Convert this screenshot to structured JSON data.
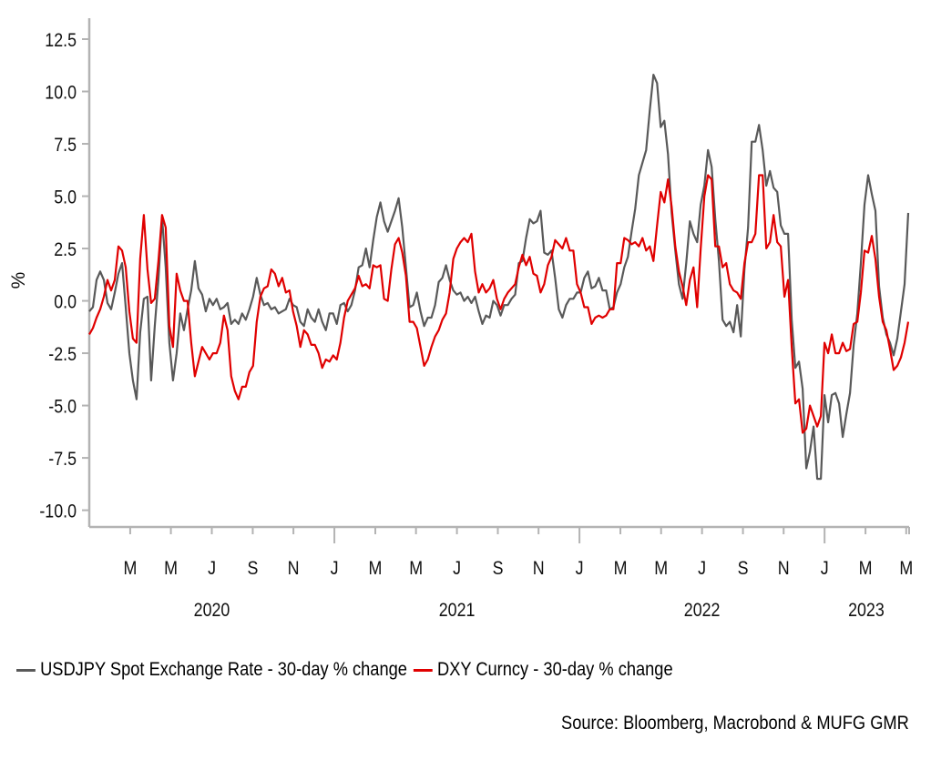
{
  "chart_data": {
    "type": "line",
    "title": "",
    "xlabel": "",
    "ylabel": "%",
    "ylim": [
      -10.8,
      13.5
    ],
    "yticks": [
      12.5,
      10.0,
      7.5,
      5.0,
      2.5,
      0.0,
      -2.5,
      -5.0,
      -7.5,
      -10.0
    ],
    "ytick_labels": [
      "12.5",
      "10.0",
      "7.5",
      "5.0",
      "2.5",
      "0.0",
      "-2.5",
      "-5.0",
      "-7.5",
      "-10.0"
    ],
    "xlim": [
      2020.0,
      2023.345
    ],
    "x_units": "decimal year",
    "x_start": 2020.0,
    "x_step": 0.01485,
    "xticks": [
      {
        "t": 2020.167,
        "label": "M"
      },
      {
        "t": 2020.333,
        "label": "M"
      },
      {
        "t": 2020.5,
        "label": "J"
      },
      {
        "t": 2020.667,
        "label": "S"
      },
      {
        "t": 2020.833,
        "label": "N"
      },
      {
        "t": 2021.0,
        "label": "J",
        "year_boundary": true
      },
      {
        "t": 2021.167,
        "label": "M"
      },
      {
        "t": 2021.333,
        "label": "M"
      },
      {
        "t": 2021.5,
        "label": "J"
      },
      {
        "t": 2021.667,
        "label": "S"
      },
      {
        "t": 2021.833,
        "label": "N"
      },
      {
        "t": 2022.0,
        "label": "J",
        "year_boundary": true
      },
      {
        "t": 2022.167,
        "label": "M"
      },
      {
        "t": 2022.333,
        "label": "M"
      },
      {
        "t": 2022.5,
        "label": "J"
      },
      {
        "t": 2022.667,
        "label": "S"
      },
      {
        "t": 2022.833,
        "label": "N"
      },
      {
        "t": 2023.0,
        "label": "J",
        "year_boundary": true
      },
      {
        "t": 2023.167,
        "label": "M"
      },
      {
        "t": 2023.333,
        "label": "M"
      }
    ],
    "year_labels": [
      {
        "t": 2020.5,
        "label": "2020"
      },
      {
        "t": 2021.5,
        "label": "2021"
      },
      {
        "t": 2022.5,
        "label": "2022"
      },
      {
        "t": 2023.17,
        "label": "2023"
      }
    ],
    "grid": false,
    "legend_position": "bottom-left",
    "series": [
      {
        "name": "USDJPY Spot Exchange Rate - 30-day % change",
        "color": "#595959",
        "values": [
          -0.5,
          -0.3,
          1.0,
          1.4,
          1.0,
          -0.1,
          -0.4,
          0.4,
          1.3,
          1.8,
          -0.3,
          -2.5,
          -3.8,
          -4.7,
          -1.5,
          0.1,
          0.2,
          -3.8,
          -1.2,
          1.0,
          4.0,
          1.6,
          -2.0,
          -3.8,
          -2.5,
          -0.6,
          -1.4,
          -0.4,
          0.5,
          1.9,
          0.6,
          0.3,
          -0.5,
          0.1,
          -0.2,
          0.1,
          -0.4,
          -0.3,
          -0.1,
          -1.1,
          -0.9,
          -1.1,
          -0.6,
          -0.9,
          -0.4,
          0.2,
          1.1,
          0.3,
          -0.2,
          -0.1,
          -0.4,
          -0.3,
          -0.6,
          -0.5,
          -0.4,
          0.1,
          -0.2,
          -0.3,
          -1.0,
          -1.2,
          -0.4,
          -0.8,
          -1.0,
          -0.4,
          -1.0,
          -1.4,
          -0.6,
          -0.6,
          -1.1,
          -0.2,
          -0.1,
          -0.5,
          -0.2,
          0.5,
          1.6,
          1.7,
          2.5,
          1.6,
          2.9,
          4.0,
          4.7,
          3.8,
          3.3,
          3.8,
          4.3,
          4.9,
          3.5,
          1.6,
          -0.3,
          -0.2,
          0.4,
          -0.5,
          -1.2,
          -0.8,
          -0.8,
          -0.2,
          0.9,
          1.1,
          1.7,
          1.0,
          0.5,
          0.3,
          0.4,
          0.0,
          0.2,
          -0.1,
          0.2,
          -0.5,
          -1.1,
          -0.7,
          -0.8,
          0.0,
          -0.2,
          -0.7,
          -0.2,
          -0.2,
          0.1,
          0.3,
          1.8,
          1.9,
          3.0,
          3.9,
          3.7,
          3.8,
          4.3,
          2.3,
          2.2,
          2.4,
          1.1,
          -0.4,
          -0.8,
          -0.2,
          0.1,
          0.1,
          0.4,
          0.4,
          1.1,
          1.4,
          0.6,
          0.7,
          1.1,
          0.5,
          0.5,
          -0.4,
          -0.3,
          0.4,
          0.8,
          1.6,
          2.1,
          3.3,
          4.4,
          6.0,
          6.6,
          7.2,
          9.1,
          10.8,
          10.4,
          8.3,
          8.6,
          7.0,
          4.2,
          2.4,
          0.8,
          0.1,
          1.8,
          3.8,
          3.2,
          2.8,
          4.6,
          5.5,
          7.2,
          6.4,
          3.9,
          1.9,
          -0.9,
          -1.2,
          -1.0,
          -1.5,
          -0.2,
          -1.7,
          1.5,
          3.5,
          7.6,
          7.6,
          8.4,
          7.2,
          5.5,
          6.2,
          5.4,
          5.2,
          3.6,
          3.2,
          3.2,
          -0.9,
          -3.2,
          -2.9,
          -4.2,
          -8.0,
          -7.2,
          -6.0,
          -8.5,
          -8.5,
          -4.5,
          -5.8,
          -4.5,
          -4.4,
          -4.9,
          -6.5,
          -5.4,
          -4.4,
          -2.1,
          -0.6,
          1.8,
          4.6,
          6.0,
          5.1,
          4.3,
          0.7,
          -0.8,
          -1.6,
          -2.0,
          -2.6,
          -1.8,
          -0.5,
          0.8,
          4.2
        ]
      },
      {
        "name": "DXY Curncy - 30-day % change",
        "color": "#e00000",
        "values": [
          -1.6,
          -1.3,
          -0.8,
          -0.4,
          0.2,
          1.0,
          0.5,
          1.0,
          2.6,
          2.4,
          1.6,
          -0.5,
          -1.8,
          -2.0,
          2.0,
          4.1,
          1.5,
          -0.1,
          0.1,
          1.9,
          4.1,
          3.5,
          -1.2,
          -2.2,
          1.3,
          0.5,
          0.0,
          0.0,
          -2.0,
          -3.6,
          -2.9,
          -2.2,
          -2.5,
          -2.8,
          -2.5,
          -2.5,
          -2.0,
          -0.7,
          -1.4,
          -3.6,
          -4.3,
          -4.7,
          -4.1,
          -4.1,
          -3.4,
          -3.1,
          -1.0,
          0.2,
          0.6,
          0.7,
          1.5,
          1.3,
          0.7,
          1.1,
          0.4,
          0.5,
          -0.5,
          -1.2,
          -2.2,
          -1.4,
          -1.6,
          -2.1,
          -2.1,
          -2.5,
          -3.2,
          -2.8,
          -2.9,
          -2.6,
          -2.8,
          -2.0,
          -0.8,
          0.0,
          0.3,
          0.6,
          1.2,
          0.7,
          0.8,
          0.6,
          1.7,
          1.6,
          1.7,
          0.1,
          0.0,
          1.5,
          2.7,
          3.0,
          2.3,
          1.2,
          -1.0,
          -1.0,
          -1.3,
          -2.2,
          -3.1,
          -2.8,
          -2.2,
          -1.7,
          -1.4,
          -0.9,
          -0.6,
          0.4,
          2.0,
          2.5,
          2.8,
          3.0,
          2.8,
          3.2,
          1.4,
          0.4,
          0.8,
          0.4,
          0.6,
          1.0,
          0.1,
          -0.4,
          0.1,
          0.4,
          0.6,
          0.8,
          1.6,
          2.2,
          1.7,
          2.1,
          1.3,
          1.2,
          0.4,
          0.8,
          1.7,
          2.1,
          2.9,
          2.7,
          2.5,
          3.0,
          2.4,
          2.4,
          0.8,
          0.4,
          -0.3,
          -0.3,
          -1.1,
          -0.8,
          -0.7,
          -0.8,
          -0.7,
          -0.4,
          -0.4,
          1.8,
          1.8,
          3.0,
          2.9,
          2.7,
          2.8,
          2.6,
          3.0,
          2.4,
          2.6,
          1.9,
          3.6,
          5.2,
          4.7,
          5.8,
          4.5,
          2.6,
          1.4,
          0.7,
          -0.2,
          1.0,
          1.6,
          -0.3,
          2.5,
          5.0,
          6.0,
          5.8,
          2.6,
          2.6,
          1.6,
          1.8,
          0.8,
          0.5,
          0.4,
          0.1,
          1.8,
          2.8,
          2.8,
          3.2,
          6.0,
          6.0,
          2.5,
          2.8,
          4.1,
          2.8,
          2.6,
          0.2,
          1.0,
          -2.2,
          -4.9,
          -4.7,
          -6.3,
          -6.1,
          -5.0,
          -5.5,
          -6.0,
          -5.5,
          -2.0,
          -2.5,
          -1.6,
          -2.5,
          -2.5,
          -2.0,
          -2.4,
          -2.3,
          -1.1,
          -1.0,
          0.4,
          2.4,
          2.3,
          3.1,
          2.0,
          0.2,
          -1.0,
          -1.4,
          -2.3,
          -3.3,
          -3.1,
          -2.7,
          -2.0,
          -1.0
        ]
      }
    ],
    "source": "Source: Bloomberg, Macrobond & MUFG GMR"
  }
}
